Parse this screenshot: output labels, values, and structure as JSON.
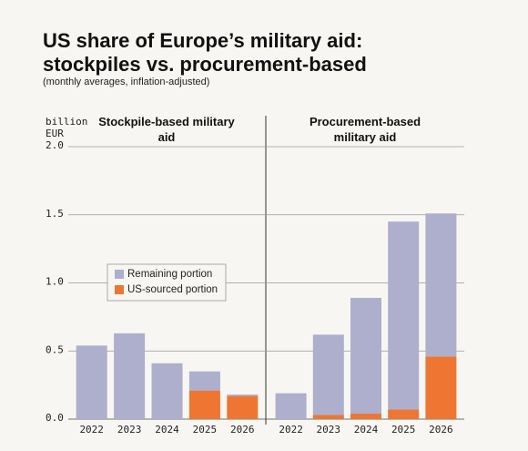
{
  "title": "US share of Europe’s military aid: stockpiles vs. procurement-based",
  "subtitle": "(monthly averages, inflation-adjusted)",
  "chart_data": [
    {
      "type": "bar",
      "stacked": true,
      "title": "Stockpile-based military aid",
      "y_label": "billion EUR",
      "categories": [
        "2022",
        "2023",
        "2024",
        "2025",
        "2026"
      ],
      "series": [
        {
          "name": "Remaining portion",
          "color": "#adafcc",
          "values": [
            0.54,
            0.63,
            0.41,
            0.14,
            0.01
          ]
        },
        {
          "name": "US-sourced portion",
          "color": "#ee7632",
          "values": [
            0,
            0,
            0,
            0.21,
            0.17
          ]
        }
      ],
      "ylim": [
        0,
        2
      ],
      "yticks": [
        {
          "value": 0,
          "label": "0.0"
        },
        0.5,
        {
          "value": 1,
          "label": "1.0"
        },
        1.5,
        {
          "value": 2,
          "label": "2.0"
        }
      ],
      "grid": true,
      "legend": "middle-left"
    },
    {
      "type": "bar",
      "stacked": true,
      "title": "Procurement-based military aid",
      "categories": [
        "2022",
        "2023",
        "2024",
        "2025",
        "2026"
      ],
      "series": [
        {
          "color": "#adafcc",
          "values": [
            0.19,
            0.59,
            0.85,
            1.38,
            1.05
          ]
        },
        {
          "color": "#ee7632",
          "values": [
            0,
            0.03,
            0.04,
            0.07,
            0.46
          ]
        }
      ],
      "ylim": [
        0,
        2
      ],
      "yticks": [
        0,
        0.5,
        1,
        1.5,
        2
      ],
      "grid": true
    }
  ]
}
